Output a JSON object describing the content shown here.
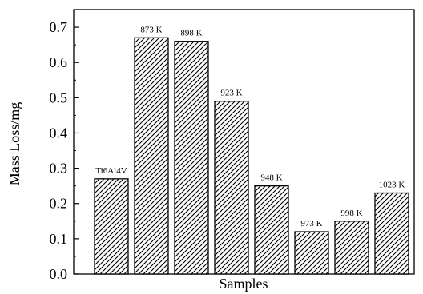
{
  "chart_data": {
    "type": "bar",
    "categories": [
      "Ti6Al4V",
      "873 K",
      "898 K",
      "923 K",
      "948 K",
      "973 K",
      "998 K",
      "1023 K"
    ],
    "values": [
      0.27,
      0.67,
      0.66,
      0.49,
      0.25,
      0.12,
      0.15,
      0.23
    ],
    "title": "",
    "xlabel": "Samples",
    "ylabel": "Mass Loss/mg",
    "ylim": [
      0.0,
      0.75
    ],
    "yticks": [
      "0.0",
      "0.1",
      "0.2",
      "0.3",
      "0.4",
      "0.5",
      "0.6",
      "0.7"
    ],
    "grid": false,
    "bar_fill": "diagonal-hatch",
    "bar_color": "#000000"
  }
}
